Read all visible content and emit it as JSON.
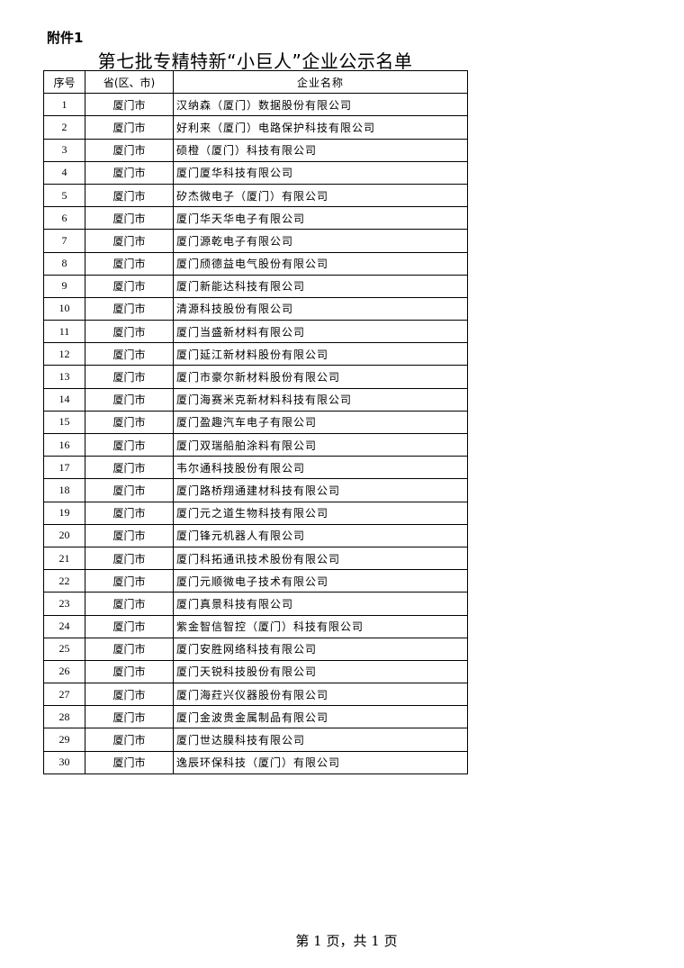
{
  "attachment_label": "附件1",
  "title": "第七批专精特新“小巨人”企业公示名单",
  "table": {
    "headers": [
      "序号",
      "省(区、市)",
      "企业名称"
    ],
    "rows": [
      [
        "1",
        "厦门市",
        "汉纳森（厦门）数据股份有限公司"
      ],
      [
        "2",
        "厦门市",
        "好利来（厦门）电路保护科技有限公司"
      ],
      [
        "3",
        "厦门市",
        "硕橙（厦门）科技有限公司"
      ],
      [
        "4",
        "厦门市",
        "厦门厦华科技有限公司"
      ],
      [
        "5",
        "厦门市",
        "矽杰微电子（厦门）有限公司"
      ],
      [
        "6",
        "厦门市",
        "厦门华天华电子有限公司"
      ],
      [
        "7",
        "厦门市",
        "厦门源乾电子有限公司"
      ],
      [
        "8",
        "厦门市",
        "厦门颀德益电气股份有限公司"
      ],
      [
        "9",
        "厦门市",
        "厦门新能达科技有限公司"
      ],
      [
        "10",
        "厦门市",
        "清源科技股份有限公司"
      ],
      [
        "11",
        "厦门市",
        "厦门当盛新材料有限公司"
      ],
      [
        "12",
        "厦门市",
        "厦门延江新材料股份有限公司"
      ],
      [
        "13",
        "厦门市",
        "厦门市豪尔新材料股份有限公司"
      ],
      [
        "14",
        "厦门市",
        "厦门海赛米克新材料科技有限公司"
      ],
      [
        "15",
        "厦门市",
        "厦门盈趣汽车电子有限公司"
      ],
      [
        "16",
        "厦门市",
        "厦门双瑞船舶涂料有限公司"
      ],
      [
        "17",
        "厦门市",
        "韦尔通科技股份有限公司"
      ],
      [
        "18",
        "厦门市",
        "厦门路桥翔通建材科技有限公司"
      ],
      [
        "19",
        "厦门市",
        "厦门元之道生物科技有限公司"
      ],
      [
        "20",
        "厦门市",
        "厦门锋元机器人有限公司"
      ],
      [
        "21",
        "厦门市",
        "厦门科拓通讯技术股份有限公司"
      ],
      [
        "22",
        "厦门市",
        "厦门元顺微电子技术有限公司"
      ],
      [
        "23",
        "厦门市",
        "厦门真景科技有限公司"
      ],
      [
        "24",
        "厦门市",
        "紫金智信智控（厦门）科技有限公司"
      ],
      [
        "25",
        "厦门市",
        "厦门安胜网络科技有限公司"
      ],
      [
        "26",
        "厦门市",
        "厦门天锐科技股份有限公司"
      ],
      [
        "27",
        "厦门市",
        "厦门海荭兴仪器股份有限公司"
      ],
      [
        "28",
        "厦门市",
        "厦门金波贵金属制品有限公司"
      ],
      [
        "29",
        "厦门市",
        "厦门世达膜科技有限公司"
      ],
      [
        "30",
        "厦门市",
        "逸辰环保科技（厦门）有限公司"
      ]
    ]
  },
  "footer": "第 1 页，共 1 页"
}
